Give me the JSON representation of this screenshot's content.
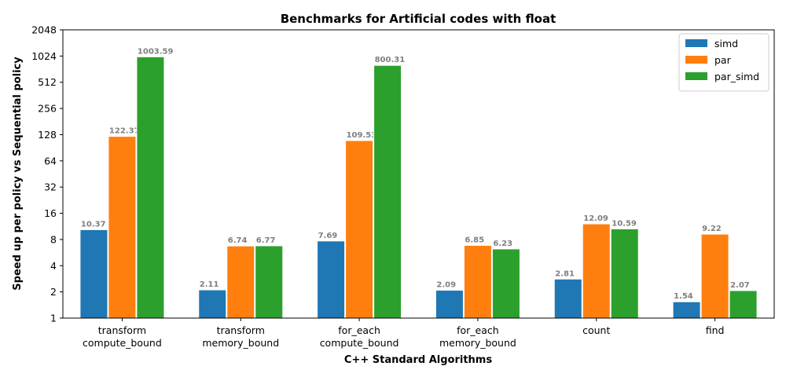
{
  "chart_data": {
    "type": "bar",
    "title": "Benchmarks for Artificial codes with float",
    "xlabel": "C++ Standard Algorithms",
    "ylabel": "Speed up per policy vs Sequential policy",
    "yscale": "log2",
    "ylim": [
      1,
      2048
    ],
    "yticks": [
      "1",
      "2",
      "4",
      "8",
      "16",
      "32",
      "64",
      "128",
      "256",
      "512",
      "1024",
      "2048"
    ],
    "categories": [
      [
        "transform",
        "compute_bound"
      ],
      [
        "transform",
        "memory_bound"
      ],
      [
        "for_each",
        "compute_bound"
      ],
      [
        "for_each",
        "memory_bound"
      ],
      [
        "count"
      ],
      [
        "find"
      ]
    ],
    "series": [
      {
        "name": "simd",
        "color": "#1f77b4",
        "values": [
          10.37,
          2.11,
          7.69,
          2.09,
          2.81,
          1.54
        ],
        "labels": [
          "10.37",
          "2.11",
          "7.69",
          "2.09",
          "2.81",
          "1.54"
        ]
      },
      {
        "name": "par",
        "color": "#ff7f0e",
        "values": [
          122.37,
          6.74,
          109.53,
          6.85,
          12.09,
          9.22
        ],
        "labels": [
          "122.37",
          "6.74",
          "109.53",
          "6.85",
          "12.09",
          "9.22"
        ]
      },
      {
        "name": "par_simd",
        "color": "#2ca02c",
        "values": [
          1003.59,
          6.77,
          800.31,
          6.23,
          10.59,
          2.07
        ],
        "labels": [
          "1003.59",
          "6.77",
          "800.31",
          "6.23",
          "10.59",
          "2.07"
        ]
      }
    ],
    "legend_position": "top-right",
    "grid": false
  }
}
